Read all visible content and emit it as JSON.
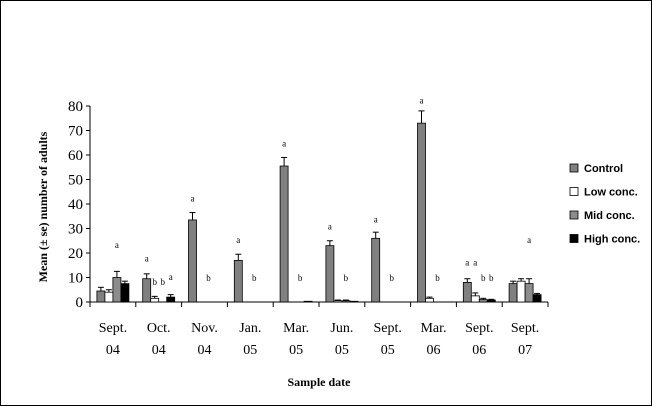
{
  "chart_data": {
    "type": "bar",
    "title": "",
    "xlabel": "Sample date",
    "ylabel": "Mean (± se) number of adults",
    "ylim": [
      0,
      80
    ],
    "yticks": [
      0,
      10,
      20,
      30,
      40,
      50,
      60,
      70,
      80
    ],
    "categories": [
      [
        "Sept.",
        "04"
      ],
      [
        "Oct.",
        "04"
      ],
      [
        "Nov.",
        "04"
      ],
      [
        "Jan.",
        "05"
      ],
      [
        "Mar.",
        "05"
      ],
      [
        "Jun.",
        "05"
      ],
      [
        "Sept.",
        "05"
      ],
      [
        "Mar.",
        "06"
      ],
      [
        "Sept.",
        "06"
      ],
      [
        "Sept.",
        "07"
      ]
    ],
    "legend_position": "right",
    "series": [
      {
        "name": "Control",
        "color": "#808080",
        "values": [
          4.5,
          9.5,
          33.5,
          17,
          55.5,
          23,
          26,
          73,
          8,
          7.5
        ],
        "errors": [
          1.5,
          2,
          3,
          2.5,
          3.5,
          2,
          2.5,
          5,
          1.5,
          1
        ]
      },
      {
        "name": "Low conc.",
        "color": "#ffffff",
        "values": [
          4,
          1.5,
          0,
          0,
          0,
          0.5,
          0,
          1.5,
          2.5,
          8.5
        ],
        "errors": [
          1,
          0.8,
          0,
          0,
          0,
          0.3,
          0,
          0.5,
          1.2,
          1
        ]
      },
      {
        "name": "Mid conc.",
        "color": "#8c8c8c",
        "values": [
          10,
          0,
          0,
          0,
          0,
          0.5,
          0,
          0,
          1,
          7.5
        ],
        "errors": [
          2.5,
          0,
          0,
          0,
          0,
          0.3,
          0,
          0,
          0.5,
          2
        ]
      },
      {
        "name": "High conc.",
        "color": "#000000",
        "values": [
          7.5,
          2,
          0,
          0,
          0.3,
          0.3,
          0,
          0,
          0.8,
          3
        ],
        "errors": [
          1,
          1,
          0,
          0,
          0,
          0,
          0,
          0,
          0.3,
          0.5
        ]
      }
    ],
    "annotations": [
      {
        "category": 0,
        "series": 2,
        "value": 22,
        "text": "a"
      },
      {
        "category": 1,
        "series": 0,
        "value": 16.5,
        "text": "a"
      },
      {
        "category": 1,
        "series": 1,
        "value": 7,
        "text": "b"
      },
      {
        "category": 1,
        "series": 2,
        "value": 7,
        "text": "b"
      },
      {
        "category": 1,
        "series": 3,
        "value": 9,
        "text": "a"
      },
      {
        "category": 2,
        "series": 0,
        "value": 41,
        "text": "a"
      },
      {
        "category": 2,
        "series": 2,
        "value": 8.5,
        "text": "b"
      },
      {
        "category": 3,
        "series": 0,
        "value": 24,
        "text": "a"
      },
      {
        "category": 3,
        "series": 2,
        "value": 8.5,
        "text": "b"
      },
      {
        "category": 4,
        "series": 0,
        "value": 63.5,
        "text": "a"
      },
      {
        "category": 4,
        "series": 2,
        "value": 8.5,
        "text": "b"
      },
      {
        "category": 5,
        "series": 0,
        "value": 29.5,
        "text": "a"
      },
      {
        "category": 5,
        "series": 2,
        "value": 8.5,
        "text": "b"
      },
      {
        "category": 6,
        "series": 0,
        "value": 32.5,
        "text": "a"
      },
      {
        "category": 6,
        "series": 2,
        "value": 8.5,
        "text": "b"
      },
      {
        "category": 7,
        "series": 0,
        "value": 81,
        "text": "a"
      },
      {
        "category": 7,
        "series": 2,
        "value": 8.5,
        "text": "b"
      },
      {
        "category": 8,
        "series": 0,
        "value": 15,
        "text": "a"
      },
      {
        "category": 8,
        "series": 1,
        "value": 15,
        "text": "a"
      },
      {
        "category": 8,
        "series": 2,
        "value": 8.5,
        "text": "b"
      },
      {
        "category": 8,
        "series": 3,
        "value": 8.5,
        "text": "b"
      },
      {
        "category": 9,
        "series": 2,
        "value": 24,
        "text": "a"
      }
    ]
  }
}
